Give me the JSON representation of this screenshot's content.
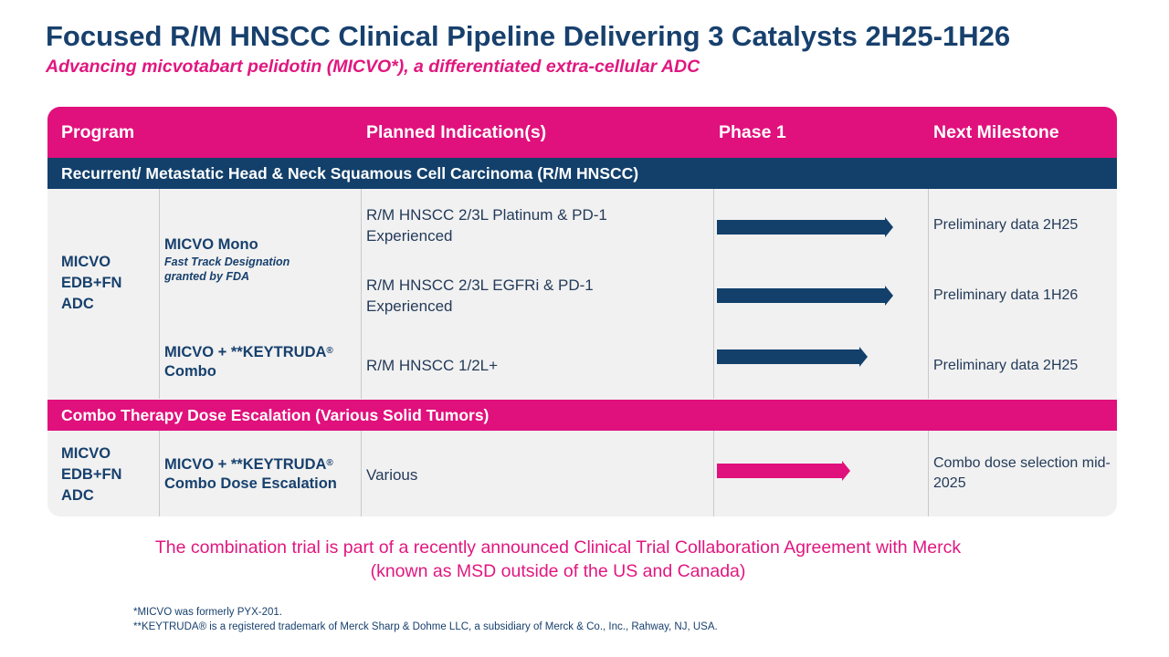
{
  "title": "Focused R/M HNSCC Clinical Pipeline Delivering 3 Catalysts 2H25-1H26",
  "subtitle": "Advancing micvotabart pelidotin (MICVO*), a differentiated extra-cellular ADC",
  "colors": {
    "navy": "#12406b",
    "pink": "#e0107c",
    "table_bg": "#f1f1f1"
  },
  "header": {
    "program": "Program",
    "indication": "Planned Indication(s)",
    "phase": "Phase 1",
    "milestone": "Next Milestone"
  },
  "section1": {
    "title": "Recurrent/ Metastatic Head & Neck Squamous Cell Carcinoma (R/M HNSCC)",
    "program": "MICVO EDB+FN ADC",
    "mono_name": "MICVO Mono",
    "mono_note_line1": "Fast Track Designation",
    "mono_note_line2": "granted by FDA",
    "combo_name_prefix": "MICVO + **KEYTRUDA",
    "combo_reg": "®",
    "combo_name_suffix": "Combo",
    "rows": [
      {
        "indication": "R/M HNSCC 2/3L Platinum & PD-1 Experienced",
        "progress": 0.82,
        "milestone": "Preliminary data 2H25"
      },
      {
        "indication": "R/M HNSCC 2/3L EGFRi & PD-1 Experienced",
        "progress": 0.82,
        "milestone": "Preliminary data 1H26"
      },
      {
        "indication": "R/M HNSCC 1/2L+",
        "progress": 0.7,
        "milestone": "Preliminary data 2H25"
      }
    ]
  },
  "section2": {
    "title": "Combo Therapy Dose Escalation (Various Solid Tumors)",
    "program": "MICVO EDB+FN ADC",
    "name_prefix": "MICVO + **KEYTRUDA",
    "name_reg": "®",
    "name_suffix": "Combo Dose Escalation",
    "indication": "Various",
    "progress": 0.62,
    "milestone": "Combo dose selection mid-2025"
  },
  "bottom_note_line1": "The combination trial is part of a recently announced Clinical Trial Collaboration Agreement with Merck",
  "bottom_note_line2": "(known as MSD outside of the US and Canada)",
  "footnote1": "*MICVO was formerly PYX-201.",
  "footnote2": "**KEYTRUDA® is a registered trademark of Merck Sharp & Dohme LLC, a subsidiary of Merck & Co., Inc., Rahway, NJ, USA."
}
